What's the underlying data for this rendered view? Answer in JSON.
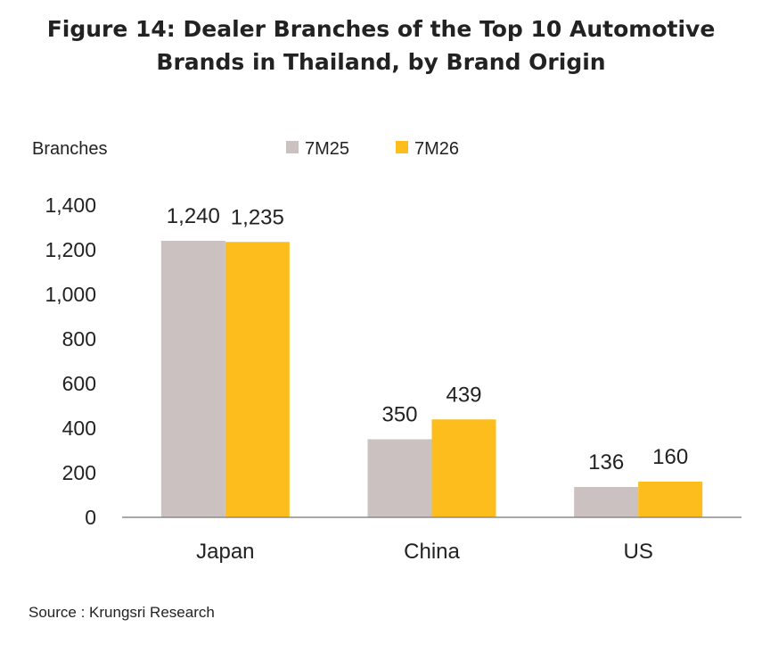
{
  "chart_data": {
    "type": "bar",
    "title_lines": [
      "Figure 14: Dealer Branches of the Top 10 Automotive",
      "Brands in Thailand, by Brand Origin"
    ],
    "ylabel": "Branches",
    "categories": [
      "Japan",
      "China",
      "US"
    ],
    "series": [
      {
        "name": "7M25",
        "values": [
          1240,
          350,
          136
        ],
        "labels": [
          "1,240",
          "350",
          "136"
        ],
        "color": "#cbc1c0"
      },
      {
        "name": "7M26",
        "values": [
          1235,
          439,
          160
        ],
        "labels": [
          "1,235",
          "439",
          "160"
        ],
        "color": "#fdbd1c"
      }
    ],
    "ylim": [
      0,
      1400
    ],
    "yticks": [
      0,
      200,
      400,
      600,
      800,
      1000,
      1200,
      1400
    ],
    "ytick_labels": [
      "0",
      "200",
      "400",
      "600",
      "800",
      "1,000",
      "1,200",
      "1,400"
    ],
    "grid": false,
    "legend_position": "top-center"
  },
  "source": "Source : Krungsri Research"
}
